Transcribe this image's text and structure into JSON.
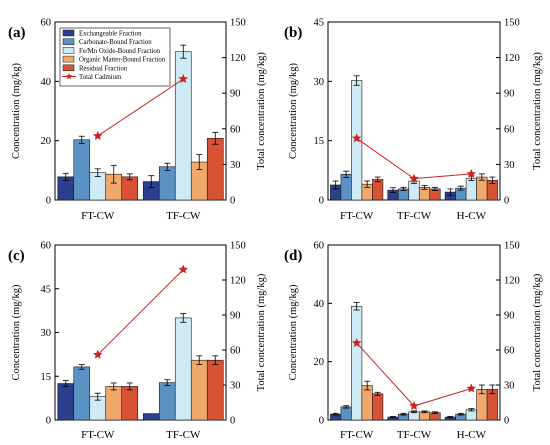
{
  "legend": {
    "entries": [
      {
        "label": "Exchangeable Fraction",
        "color": "#2c3f8c"
      },
      {
        "label": "Carbonate-Bound Fraction",
        "color": "#5a93c3"
      },
      {
        "label": "Fe/Mn Oxide-Bound Fraction",
        "color": "#cdeaf5"
      },
      {
        "label": "Organic Matter-Bound Fraction",
        "color": "#f0a96a"
      },
      {
        "label": "Residual Fraction",
        "color": "#d85236"
      },
      {
        "label": "Total Cadmium",
        "color": "#cc2222"
      }
    ]
  },
  "chart_data": [
    {
      "panel": "(a)",
      "type": "bar",
      "ylabel": "Concentration (mg/kg)",
      "y2label": "Total concentration (mg/kg)",
      "ylim": [
        0,
        60
      ],
      "y2lim": [
        0,
        150
      ],
      "yticks": [
        "0",
        "20",
        "40",
        "60"
      ],
      "y2ticks": [
        "0",
        "30",
        "60",
        "90",
        "120",
        "150"
      ],
      "categories": [
        "FT-CW",
        "TF-CW"
      ],
      "series": [
        {
          "name": "Exchangeable Fraction",
          "values": [
            7.8,
            6.2
          ],
          "err": [
            1.2,
            2.0
          ]
        },
        {
          "name": "Carbonate-Bound Fraction",
          "values": [
            20.3,
            11.2
          ],
          "err": [
            1.2,
            1.2
          ]
        },
        {
          "name": "Fe/Mn Oxide-Bound Fraction",
          "values": [
            9.2,
            50.0
          ],
          "err": [
            1.3,
            2.2
          ]
        },
        {
          "name": "Organic Matter-Bound Fraction",
          "values": [
            8.7,
            12.8
          ],
          "err": [
            3.0,
            2.5
          ]
        },
        {
          "name": "Residual Fraction",
          "values": [
            7.8,
            20.8
          ],
          "err": [
            1.0,
            2.0
          ]
        }
      ],
      "total": {
        "name": "Total Cadmium",
        "values": [
          54,
          102
        ]
      }
    },
    {
      "panel": "(b)",
      "type": "bar",
      "ylabel": "Concentration (mg/kg)",
      "y2label": "Total concentration (mg/kg)",
      "ylim": [
        0,
        45
      ],
      "y2lim": [
        0,
        150
      ],
      "yticks": [
        "0",
        "15",
        "30",
        "45"
      ],
      "y2ticks": [
        "0",
        "30",
        "60",
        "90",
        "120",
        "150"
      ],
      "categories": [
        "FT-CW",
        "TF-CW",
        "H-CW"
      ],
      "series": [
        {
          "name": "Exchangeable Fraction",
          "values": [
            3.8,
            2.5,
            2.0
          ],
          "err": [
            1.0,
            0.6,
            0.8
          ]
        },
        {
          "name": "Carbonate-Bound Fraction",
          "values": [
            6.5,
            2.8,
            3.0
          ],
          "err": [
            0.8,
            0.4,
            0.5
          ]
        },
        {
          "name": "Fe/Mn Oxide-Bound Fraction",
          "values": [
            30.2,
            4.8,
            5.5
          ],
          "err": [
            1.2,
            0.6,
            0.6
          ]
        },
        {
          "name": "Organic Matter-Bound Fraction",
          "values": [
            4.0,
            3.2,
            5.8
          ],
          "err": [
            0.8,
            0.5,
            0.8
          ]
        },
        {
          "name": "Residual Fraction",
          "values": [
            5.2,
            2.8,
            5.0
          ],
          "err": [
            0.6,
            0.4,
            0.8
          ]
        }
      ],
      "total": {
        "name": "Total Cadmium",
        "values": [
          52,
          18,
          22
        ]
      }
    },
    {
      "panel": "(c)",
      "type": "bar",
      "ylabel": "Concentration (mg/kg)",
      "y2label": "Total concentration (mg/kg)",
      "ylim": [
        0,
        60
      ],
      "y2lim": [
        0,
        150
      ],
      "yticks": [
        "0",
        "15",
        "30",
        "45",
        "60"
      ],
      "y2ticks": [
        "0",
        "30",
        "60",
        "90",
        "120",
        "150"
      ],
      "categories": [
        "FT-CW",
        "TF-CW"
      ],
      "series": [
        {
          "name": "Exchangeable Fraction",
          "values": [
            12.5,
            2.2
          ],
          "err": [
            1.0,
            0.0
          ]
        },
        {
          "name": "Carbonate-Bound Fraction",
          "values": [
            18.2,
            12.8
          ],
          "err": [
            0.8,
            1.0
          ]
        },
        {
          "name": "Fe/Mn Oxide-Bound Fraction",
          "values": [
            8.0,
            35.0
          ],
          "err": [
            1.2,
            1.5
          ]
        },
        {
          "name": "Organic Matter-Bound Fraction",
          "values": [
            11.5,
            20.5
          ],
          "err": [
            1.2,
            1.5
          ]
        },
        {
          "name": "Residual Fraction",
          "values": [
            11.5,
            20.5
          ],
          "err": [
            1.2,
            1.5
          ]
        }
      ],
      "total": {
        "name": "Total Cadmium",
        "values": [
          56,
          129
        ]
      }
    },
    {
      "panel": "(d)",
      "type": "bar",
      "ylabel": "Concentration (mg/kg)",
      "y2label": "Total concentration (mg/kg)",
      "ylim": [
        0,
        60
      ],
      "y2lim": [
        0,
        150
      ],
      "yticks": [
        "0",
        "20",
        "40",
        "60"
      ],
      "y2ticks": [
        "0",
        "30",
        "60",
        "90",
        "120",
        "150"
      ],
      "categories": [
        "FT-CW",
        "TF-CW",
        "H-CW"
      ],
      "series": [
        {
          "name": "Exchangeable Fraction",
          "values": [
            2.0,
            1.0,
            1.0
          ],
          "err": [
            0.3,
            0.2,
            0.2
          ]
        },
        {
          "name": "Carbonate-Bound Fraction",
          "values": [
            4.5,
            2.0,
            2.0
          ],
          "err": [
            0.4,
            0.3,
            0.3
          ]
        },
        {
          "name": "Fe/Mn Oxide-Bound Fraction",
          "values": [
            39.0,
            2.8,
            3.5
          ],
          "err": [
            1.3,
            0.3,
            0.4
          ]
        },
        {
          "name": "Organic Matter-Bound Fraction",
          "values": [
            11.8,
            2.8,
            10.5
          ],
          "err": [
            1.5,
            0.3,
            1.5
          ]
        },
        {
          "name": "Residual Fraction",
          "values": [
            9.0,
            2.5,
            10.5
          ],
          "err": [
            0.5,
            0.3,
            1.5
          ]
        }
      ],
      "total": {
        "name": "Total Cadmium",
        "values": [
          66,
          12,
          27
        ]
      }
    }
  ]
}
